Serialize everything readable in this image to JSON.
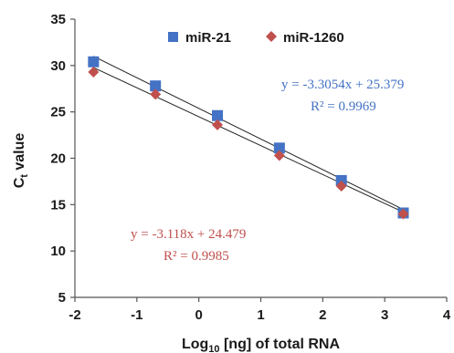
{
  "chart_data": {
    "type": "scatter",
    "xlabel_main": "Log",
    "xlabel_sub": "10",
    "xlabel_rest": " [ng] of total RNA",
    "ylabel_main": "C",
    "ylabel_sub": "t",
    "ylabel_rest": " value",
    "xlim": [
      -2,
      4
    ],
    "ylim": [
      5,
      35
    ],
    "x_ticks": [
      -2,
      -1,
      0,
      1,
      2,
      3,
      4
    ],
    "y_ticks": [
      5,
      10,
      15,
      20,
      25,
      30,
      35
    ],
    "grid": false,
    "legend_position": "top",
    "series": [
      {
        "name": "miR-21",
        "marker": "square",
        "color": "#4472C4",
        "x": [
          -1.7,
          -0.7,
          0.3,
          1.3,
          2.3,
          3.3
        ],
        "y": [
          30.4,
          27.8,
          24.6,
          21.1,
          17.6,
          14.1
        ],
        "trendline": {
          "slope": -3.3054,
          "intercept": 25.379
        },
        "equation": "y = -3.3054x + 25.379",
        "r2": "R² = 0.9969",
        "equation_color": "#4472C4"
      },
      {
        "name": "miR-1260",
        "marker": "diamond",
        "color": "#C0504D",
        "x": [
          -1.7,
          -0.7,
          0.3,
          1.3,
          2.3,
          3.3
        ],
        "y": [
          29.3,
          26.9,
          23.6,
          20.3,
          17.0,
          14.0
        ],
        "trendline": {
          "slope": -3.118,
          "intercept": 24.479
        },
        "equation": "y = -3.118x + 24.479",
        "r2": "R² = 0.9985",
        "equation_color": "#C0504D"
      }
    ]
  }
}
